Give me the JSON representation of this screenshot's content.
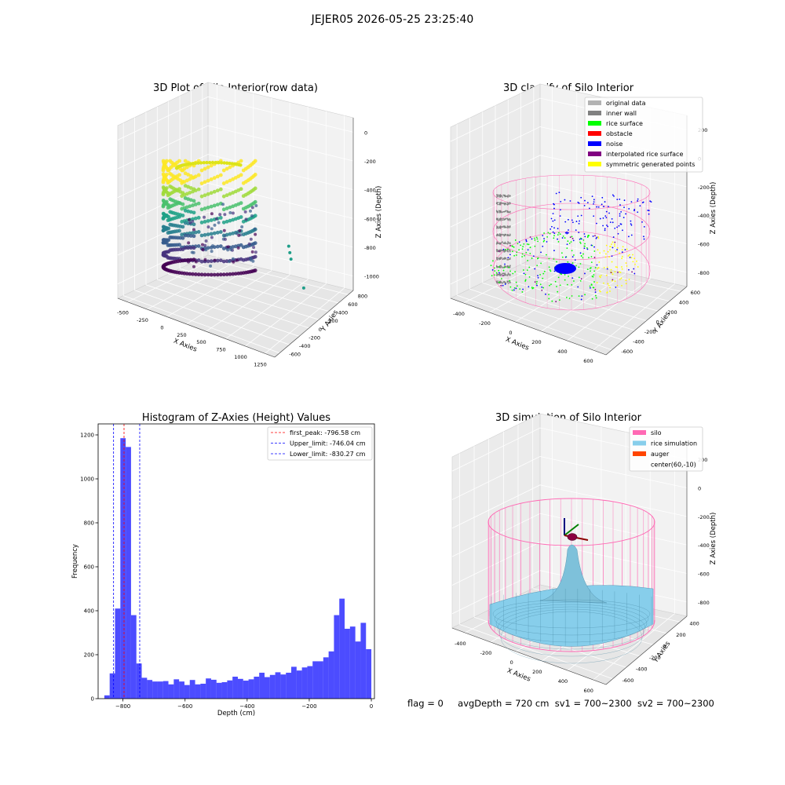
{
  "figure": {
    "title": "JEJER05 2026-05-25 23:25:40",
    "status": {
      "flag": "flag = 0",
      "avg_depth": "avgDepth = 720 cm",
      "sv1": "sv1 = 700~2300",
      "sv2": "sv2 = 700~2300"
    }
  },
  "chart_data": [
    {
      "type": "scatter",
      "projection": "3d",
      "title": "3D Plot of Silo Interior(row data)",
      "xlabel": "X Axies",
      "ylabel": "Y Axies",
      "zlabel": "Z Axies (Depth)",
      "xticks": [
        "-500",
        "-250",
        "0",
        "250",
        "500",
        "750",
        "1000",
        "1250"
      ],
      "yticks": [
        "-600",
        "-400",
        "-200",
        "0",
        "200",
        "400",
        "600",
        "800"
      ],
      "zticks": [
        "-1000",
        "-800",
        "-600",
        "-400",
        "-200",
        "0"
      ],
      "xlim": [
        -600,
        1300
      ],
      "ylim": [
        -650,
        850
      ],
      "zlim": [
        -1000,
        0
      ],
      "colormap": "viridis",
      "outliers": [
        {
          "x": 1250,
          "y": -100,
          "z": -700
        },
        {
          "x": 950,
          "y": 100,
          "z": -620
        },
        {
          "x": 900,
          "y": 150,
          "z": -600
        },
        {
          "x": 850,
          "y": 200,
          "z": -580
        }
      ]
    },
    {
      "type": "scatter",
      "projection": "3d",
      "title": "3D classify of Silo Interior",
      "xlabel": "X Axies",
      "ylabel": "Y Axies",
      "zlabel": "Z Axies (Depth)",
      "xticks": [
        "-400",
        "-200",
        "0",
        "200",
        "400",
        "600"
      ],
      "yticks": [
        "-600",
        "-400",
        "-200",
        "0",
        "200",
        "400",
        "600"
      ],
      "zticks": [
        "-800",
        "-600",
        "-400",
        "-200",
        "0",
        "200"
      ],
      "xlim": [
        -550,
        650
      ],
      "ylim": [
        -600,
        650
      ],
      "zlim": [
        -900,
        200
      ],
      "legend_position": "top-right",
      "legend": [
        {
          "label": "original data",
          "color": "#b3b3b3"
        },
        {
          "label": "inner wall",
          "color": "#808080"
        },
        {
          "label": "rice surface",
          "color": "#00ff00"
        },
        {
          "label": "obstacle",
          "color": "#ff0000"
        },
        {
          "label": "noise",
          "color": "#0000ff"
        },
        {
          "label": "interpolated rice surface",
          "color": "#800080"
        },
        {
          "label": "symmetric generated points",
          "color": "#ffff00"
        }
      ],
      "silo_outline_color": "#ff69b4"
    },
    {
      "type": "bar",
      "title": "Histogram of Z-Axies (Height) Values",
      "xlabel": "Depth (cm)",
      "ylabel": "Frequency",
      "xticks": [
        -800,
        -600,
        -400,
        -200,
        0
      ],
      "yticks": [
        0,
        200,
        400,
        600,
        800,
        1000,
        1200
      ],
      "xlim": [
        -880,
        10
      ],
      "ylim": [
        0,
        1250
      ],
      "bar_color": "#0000ff",
      "bin_start": -860,
      "bin_width": 17.2,
      "values": [
        15,
        115,
        410,
        1185,
        1145,
        380,
        160,
        95,
        85,
        78,
        78,
        80,
        65,
        88,
        78,
        62,
        85,
        65,
        68,
        92,
        86,
        72,
        75,
        83,
        100,
        90,
        82,
        88,
        100,
        118,
        98,
        108,
        120,
        110,
        118,
        145,
        128,
        142,
        148,
        170,
        170,
        188,
        215,
        380,
        455,
        318,
        328,
        260,
        345,
        225
      ],
      "reference_lines": [
        {
          "label": "first_peak: -796.58 cm",
          "value": -796.58,
          "color": "#ff0000"
        },
        {
          "label": "Upper_limit: -746.04 cm",
          "value": -746.04,
          "color": "#0000ff"
        },
        {
          "label": "Lower_limit: -830.27 cm",
          "value": -830.27,
          "color": "#0000ff"
        }
      ],
      "legend_position": "top-right"
    },
    {
      "type": "surface",
      "projection": "3d",
      "title": "3D simulation of Silo Interior",
      "xlabel": "X Axies",
      "ylabel": "Y Axies",
      "zlabel": "Z Axies (Depth)",
      "xticks": [
        "-400",
        "-200",
        "0",
        "200",
        "400",
        "600"
      ],
      "yticks": [
        "-600",
        "-400",
        "-200",
        "0",
        "200",
        "400"
      ],
      "zticks": [
        "-800",
        "-600",
        "-400",
        "-200",
        "0",
        "200"
      ],
      "xlim": [
        -500,
        650
      ],
      "ylim": [
        -650,
        500
      ],
      "zlim": [
        -850,
        300
      ],
      "legend_position": "top-right",
      "legend": [
        {
          "label": "silo",
          "color": "#ff69b4"
        },
        {
          "label": "rice simulation",
          "color": "#87ceeb"
        },
        {
          "label": "auger",
          "color": "#ff4500"
        },
        {
          "label": "center(60,-10)",
          "color": ""
        }
      ]
    }
  ]
}
